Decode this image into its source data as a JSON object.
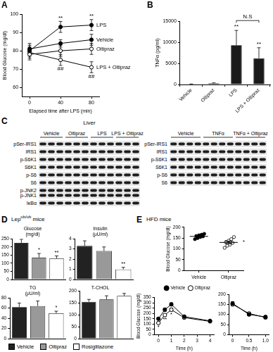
{
  "panels": [
    {
      "letter": "A"
    },
    {
      "letter": "B"
    },
    {
      "letter": "C"
    },
    {
      "letter": "D",
      "title": {
        "text": "Lep",
        "superscript": "ob/ob",
        "after": " mice"
      },
      "legend": "bottom",
      "series": [
        {
          "name": "Vehicle",
          "color": "#222222"
        },
        {
          "name": "Oltipraz",
          "color": "#999999"
        },
        {
          "name": "Rosiglitazone",
          "color": "#ffffff"
        }
      ]
    },
    {
      "letter": "E",
      "title": {
        "text": "HFD mice"
      }
    }
  ],
  "blots": {
    "panel": "C",
    "title": "Liver",
    "blocks": [
      {
        "groups": [
          "Vehicle",
          "Oltipraz",
          "LPS",
          "LPS + Oltipraz"
        ],
        "lanes_per_group": 3,
        "rows": [
          "pSer-IRS1",
          "IRS1",
          "p-S6K1",
          "S6K1",
          "p-S6",
          "S6",
          [
            "p-JNK2",
            "p-JNK1"
          ],
          "IκBα"
        ]
      },
      {
        "groups": [
          "Vehicle",
          "TNFα",
          "TNFα + Oltipraz"
        ],
        "lanes_per_group": 4,
        "rows": [
          "pSer-IRS1",
          "IRS1",
          "p-S6K1",
          "S6K1",
          "p-S6",
          "S6"
        ]
      }
    ]
  },
  "chart_data": [
    {
      "panel": "A",
      "type": "line",
      "xlabel": "Elapsed time after LPS (min)",
      "ylabel": "Blood Glucose (mg/dl)",
      "x": [
        0,
        40,
        80
      ],
      "xlim": [
        -10,
        90
      ],
      "xticks": [
        0,
        40,
        80
      ],
      "ylim": [
        55,
        100
      ],
      "yticks": [
        60,
        70,
        80,
        90,
        100
      ],
      "grid": false,
      "legend": "right",
      "series": [
        {
          "name": "LPS",
          "color": "#000000",
          "marker": "filled-circle",
          "values": [
            80,
            93,
            94
          ],
          "errors": [
            3,
            3,
            3
          ]
        },
        {
          "name": "Vehicle",
          "color": "#000000",
          "marker": "filled-circle",
          "values": [
            81,
            84,
            86
          ],
          "errors": [
            3,
            2,
            3
          ]
        },
        {
          "name": "Oltipraz",
          "color": "#000000",
          "marker": "open-circle",
          "values": [
            78,
            80,
            81
          ],
          "errors": [
            3,
            3,
            3
          ]
        },
        {
          "name": "LPS + Oltipraz",
          "color": "#000000",
          "marker": "open-circle",
          "values": [
            79,
            75,
            71
          ],
          "errors": [
            3,
            3,
            3
          ]
        }
      ],
      "annotations": [
        {
          "text": "**",
          "series": "LPS",
          "index": 1,
          "position": "above"
        },
        {
          "text": "**",
          "series": "LPS",
          "index": 2,
          "position": "above"
        },
        {
          "text": "##",
          "series": "LPS + Oltipraz",
          "index": 1,
          "position": "below"
        },
        {
          "text": "##",
          "series": "LPS + Oltipraz",
          "index": 2,
          "position": "below"
        }
      ]
    },
    {
      "panel": "B",
      "type": "bar",
      "ylabel": "TNFα (pg/ml)",
      "categories": [
        "Vehicle",
        "Oltipraz",
        "LPS",
        "LPS + Oltipraz"
      ],
      "values": [
        100,
        300,
        9300,
        6200
      ],
      "errors": [
        30,
        80,
        3500,
        2500
      ],
      "color": "#1a1a1a",
      "ylim": [
        0,
        15000
      ],
      "yticks": [
        0,
        5000,
        10000,
        15000
      ],
      "grid": false,
      "annotations": [
        {
          "text": "**",
          "index": 2,
          "position": "above"
        },
        {
          "text": "**",
          "index": 3,
          "position": "above"
        },
        {
          "text": "N.S",
          "bracket": [
            2,
            3
          ]
        }
      ]
    },
    {
      "panel": "D",
      "type": "bar",
      "title": "Glucose",
      "subtitle": "(mg/dl)",
      "categories": [
        null,
        null,
        null
      ],
      "values": [
        225,
        135,
        130
      ],
      "errors": [
        22,
        25,
        15
      ],
      "colors": [
        "#222222",
        "#999999",
        "#ffffff"
      ],
      "ylim": [
        0,
        250
      ],
      "yticks": [
        0,
        50,
        100,
        150,
        200,
        250
      ],
      "grid": false,
      "tick_labels": "y",
      "annotations": [
        {
          "text": "*",
          "index": 1,
          "position": "above"
        },
        {
          "text": "**",
          "index": 2,
          "position": "above"
        }
      ]
    },
    {
      "panel": "D",
      "type": "bar",
      "title": "Insulin",
      "subtitle": "(μU/ml)",
      "categories": [
        null,
        null,
        null
      ],
      "values": [
        3.3,
        2.8,
        1.0
      ],
      "errors": [
        0.5,
        0.4,
        0.2
      ],
      "colors": [
        "#222222",
        "#999999",
        "#ffffff"
      ],
      "ylim": [
        0,
        4
      ],
      "yticks": [
        0,
        1,
        2,
        3,
        4
      ],
      "grid": false,
      "tick_labels": "y",
      "annotations": [
        {
          "text": "**",
          "index": 2,
          "position": "above"
        }
      ]
    },
    {
      "panel": "D",
      "type": "bar",
      "title": "TG",
      "subtitle": "(μU/ml)",
      "categories": [
        null,
        null,
        null
      ],
      "values": [
        62,
        64,
        50
      ],
      "errors": [
        8,
        10,
        4
      ],
      "colors": [
        "#222222",
        "#999999",
        "#ffffff"
      ],
      "ylim": [
        0,
        80
      ],
      "yticks": [
        0,
        20,
        40,
        60,
        80
      ],
      "grid": false,
      "tick_labels": "y",
      "annotations": [
        {
          "text": "*",
          "index": 2,
          "position": "above"
        }
      ]
    },
    {
      "panel": "D",
      "type": "bar",
      "title": "T-CHOL",
      "categories": [
        null,
        null,
        null
      ],
      "values": [
        155,
        165,
        180
      ],
      "errors": [
        10,
        15,
        10
      ],
      "colors": [
        "#222222",
        "#999999",
        "#ffffff"
      ],
      "ylim": [
        0,
        200
      ],
      "yticks": [
        0,
        50,
        100,
        150,
        200
      ],
      "grid": false,
      "tick_labels": "y"
    },
    {
      "panel": "E",
      "type": "scatter",
      "ylabel": "Blood Glucose (mg/dl)",
      "categories": [
        "Vehicle",
        "Oltipraz"
      ],
      "points": [
        [
          145,
          150,
          155,
          158,
          160,
          163,
          166,
          170
        ],
        [
          105,
          115,
          120,
          128,
          132,
          138,
          145,
          155
        ]
      ],
      "values": [
        158,
        130
      ],
      "errors": [
        3,
        6
      ],
      "colors": [
        "#000000",
        "#ffffff"
      ],
      "ylim": [
        0,
        200
      ],
      "yticks": [
        0,
        50,
        100,
        150,
        200
      ],
      "grid": false,
      "annotations": [
        {
          "text": "*",
          "index": 1,
          "position": "right"
        }
      ]
    },
    {
      "panel": "E",
      "type": "line",
      "xlabel": "Time (h)",
      "ylabel": "Blood Glucose (mg/dl)",
      "x": [
        0,
        0.5,
        1,
        2,
        4
      ],
      "xlim": [
        -0.3,
        4.3
      ],
      "xticks": [
        0,
        1,
        2,
        3,
        4
      ],
      "ylim": [
        0,
        350
      ],
      "yticks": [
        0,
        50,
        100,
        150,
        200,
        250,
        300,
        350
      ],
      "grid": false,
      "legend": "top",
      "series": [
        {
          "name": "Vehicle",
          "color": "#000000",
          "marker": "filled-circle",
          "values": [
            150,
            235,
            285,
            170,
            130
          ],
          "errors": [
            8,
            15,
            15,
            10,
            8
          ]
        },
        {
          "name": "Oltipraz",
          "color": "#000000",
          "marker": "open-circle",
          "values": [
            110,
            185,
            235,
            160,
            125
          ],
          "errors": [
            8,
            12,
            15,
            10,
            8
          ]
        }
      ],
      "annotations": [
        {
          "text": "*",
          "series": "Oltipraz",
          "index": 0,
          "position": "below"
        },
        {
          "text": "**",
          "series": "Oltipraz",
          "index": 1,
          "position": "below"
        },
        {
          "text": "*",
          "series": "Oltipraz",
          "index": 2,
          "position": "below"
        }
      ]
    },
    {
      "panel": "E",
      "type": "line",
      "xlabel": "Time (h)",
      "x": [
        0,
        0.5,
        1
      ],
      "xlim": [
        -0.1,
        1.1
      ],
      "xticks": [
        0,
        0.5,
        {
          "value": 1,
          "label": "1.0"
        }
      ],
      "ylim": [
        0,
        200
      ],
      "yticks": [
        0,
        50,
        100,
        150,
        200
      ],
      "grid": false,
      "series": [
        {
          "color": "#000000",
          "marker": "filled-circle",
          "values": [
            155,
            100,
            88
          ],
          "errors": [
            8,
            6,
            6
          ]
        },
        {
          "color": "#000000",
          "marker": "open-circle",
          "values": [
            150,
            105,
            85
          ],
          "errors": [
            8,
            6,
            6
          ]
        }
      ]
    }
  ]
}
